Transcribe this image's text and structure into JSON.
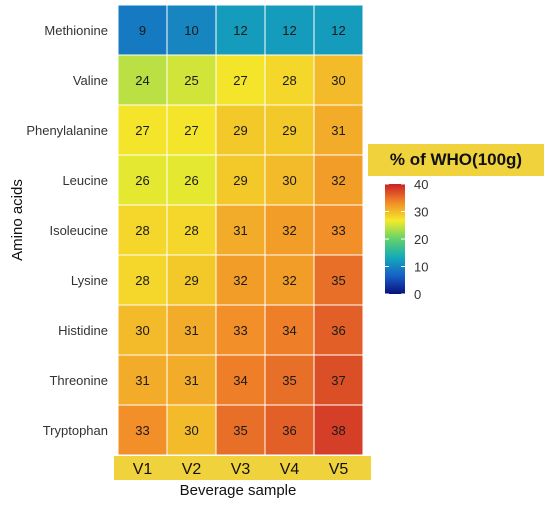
{
  "chart_data": {
    "type": "heatmap",
    "xlabel": "Beverage sample",
    "ylabel": "Amino acids",
    "legend_title": "% of WHO(100g)",
    "legend_range": [
      0,
      40
    ],
    "legend_ticks": [
      0,
      10,
      20,
      30,
      40
    ],
    "colormap": [
      "#08127a",
      "#1760c8",
      "#15aab8",
      "#62d26a",
      "#f4ea2a",
      "#f28a28",
      "#c91f26"
    ],
    "highlight_color": "#f0d23c",
    "columns": [
      "V1",
      "V2",
      "V3",
      "V4",
      "V5"
    ],
    "rows": [
      "Methionine",
      "Valine",
      "Phenylalanine",
      "Leucine",
      "Isoleucine",
      "Lysine",
      "Histidine",
      "Threonine",
      "Tryptophan"
    ],
    "values": [
      [
        9,
        10,
        12,
        12,
        12
      ],
      [
        24,
        25,
        27,
        28,
        30
      ],
      [
        27,
        27,
        29,
        29,
        31
      ],
      [
        26,
        26,
        29,
        30,
        32
      ],
      [
        28,
        28,
        31,
        32,
        33
      ],
      [
        28,
        29,
        32,
        32,
        35
      ],
      [
        30,
        31,
        33,
        34,
        36
      ],
      [
        31,
        31,
        34,
        35,
        37
      ],
      [
        33,
        30,
        35,
        36,
        38
      ]
    ]
  }
}
